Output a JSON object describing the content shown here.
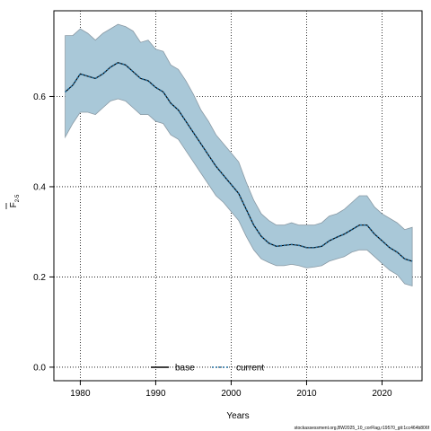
{
  "chart_data": {
    "type": "line",
    "xlabel": "Years",
    "ylabel": "F",
    "ylabel_sub": "2-5",
    "xlim": [
      1976.5,
      2025.3
    ],
    "ylim": [
      -0.03,
      0.79
    ],
    "xticks": [
      1980,
      1990,
      2000,
      2010,
      2020
    ],
    "yticks": [
      0.0,
      0.2,
      0.4,
      0.6
    ],
    "ytick_labels": [
      "0.0",
      "0.2",
      "0.4",
      "0.6"
    ],
    "grid": true,
    "legend_position": "bottom",
    "x": [
      1978,
      1979,
      1980,
      1981,
      1982,
      1983,
      1984,
      1985,
      1986,
      1987,
      1988,
      1989,
      1990,
      1991,
      1992,
      1993,
      1994,
      1995,
      1996,
      1997,
      1998,
      1999,
      2000,
      2001,
      2002,
      2003,
      2004,
      2005,
      2006,
      2007,
      2008,
      2009,
      2010,
      2011,
      2012,
      2013,
      2014,
      2015,
      2016,
      2017,
      2018,
      2019,
      2020,
      2021,
      2022,
      2023,
      2024
    ],
    "series": [
      {
        "name": "base",
        "color": "#000000",
        "style": "solid",
        "values": [
          0.61,
          0.625,
          0.65,
          0.645,
          0.64,
          0.65,
          0.665,
          0.675,
          0.67,
          0.655,
          0.64,
          0.635,
          0.62,
          0.61,
          0.585,
          0.57,
          0.545,
          0.52,
          0.495,
          0.47,
          0.445,
          0.425,
          0.405,
          0.385,
          0.35,
          0.315,
          0.29,
          0.275,
          0.268,
          0.27,
          0.272,
          0.27,
          0.265,
          0.265,
          0.268,
          0.28,
          0.288,
          0.295,
          0.305,
          0.315,
          0.315,
          0.295,
          0.28,
          0.265,
          0.255,
          0.24,
          0.235
        ]
      },
      {
        "name": "current",
        "color": "#1f6c9e",
        "style": "dotted",
        "values": [
          0.61,
          0.625,
          0.65,
          0.645,
          0.64,
          0.65,
          0.665,
          0.675,
          0.67,
          0.655,
          0.64,
          0.635,
          0.62,
          0.61,
          0.585,
          0.57,
          0.545,
          0.52,
          0.495,
          0.47,
          0.445,
          0.425,
          0.405,
          0.385,
          0.35,
          0.315,
          0.29,
          0.275,
          0.268,
          0.27,
          0.272,
          0.27,
          0.265,
          0.265,
          0.268,
          0.28,
          0.288,
          0.295,
          0.305,
          0.315,
          0.315,
          0.295,
          0.28,
          0.265,
          0.255,
          0.24,
          0.235
        ]
      }
    ],
    "band": {
      "color": "#a9c8d8",
      "edge_color": "#8a9aa5",
      "upper": [
        0.735,
        0.735,
        0.75,
        0.74,
        0.725,
        0.74,
        0.75,
        0.76,
        0.755,
        0.745,
        0.72,
        0.725,
        0.705,
        0.7,
        0.67,
        0.66,
        0.635,
        0.605,
        0.57,
        0.545,
        0.515,
        0.495,
        0.475,
        0.455,
        0.41,
        0.37,
        0.34,
        0.325,
        0.315,
        0.315,
        0.32,
        0.315,
        0.315,
        0.315,
        0.32,
        0.335,
        0.34,
        0.35,
        0.365,
        0.38,
        0.38,
        0.355,
        0.34,
        0.33,
        0.32,
        0.305,
        0.31
      ],
      "lower": [
        0.51,
        0.54,
        0.565,
        0.565,
        0.56,
        0.575,
        0.59,
        0.595,
        0.59,
        0.575,
        0.56,
        0.56,
        0.545,
        0.54,
        0.515,
        0.505,
        0.48,
        0.455,
        0.43,
        0.405,
        0.38,
        0.365,
        0.345,
        0.325,
        0.29,
        0.26,
        0.24,
        0.232,
        0.225,
        0.225,
        0.228,
        0.225,
        0.22,
        0.222,
        0.225,
        0.235,
        0.24,
        0.245,
        0.255,
        0.26,
        0.26,
        0.245,
        0.23,
        0.215,
        0.205,
        0.185,
        0.18
      ]
    }
  },
  "footer_text": "stockassessment.org,BW2025_10_corFlag,r19570_git:1cc464b806f"
}
